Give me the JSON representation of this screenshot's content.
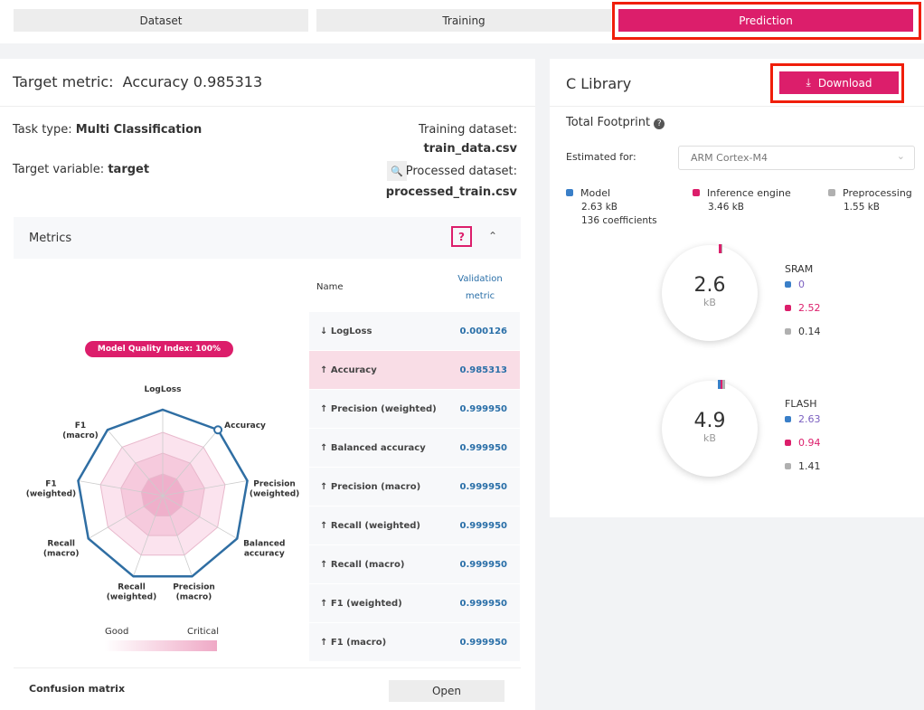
{
  "tabs": [
    {
      "label": "Dataset"
    },
    {
      "label": "Training"
    },
    {
      "label": "Prediction",
      "active": true
    }
  ],
  "left": {
    "target_label": "Target metric:",
    "target_value": "Accuracy 0.985313",
    "task_type_label": "Task type:",
    "task_type": "Multi Classification",
    "target_var_label": "Target variable:",
    "target_var": "target",
    "training_label": "Training dataset:",
    "training_file": "train_data.csv",
    "processed_label": "Processed dataset:",
    "processed_file": "processed_train.csv",
    "metrics_title": "Metrics",
    "help": "?",
    "mqi": "Model Quality Index: 100%",
    "radar_axes": [
      "LogLoss",
      "Accuracy",
      "Precision (weighted)",
      "Balanced accuracy",
      "Precision (macro)",
      "Recall (weighted)",
      "Recall (macro)",
      "F1 (weighted)",
      "F1 (macro)"
    ],
    "radar_values": [
      1,
      1,
      1,
      1,
      1,
      1,
      1,
      1,
      1
    ],
    "legend_good": "Good",
    "legend_critical": "Critical",
    "table_head": {
      "name": "Name",
      "metric": "Validation metric"
    },
    "rows": [
      {
        "arrow": "↓",
        "name": "LogLoss",
        "value": "0.000126"
      },
      {
        "arrow": "↑",
        "name": "Accuracy",
        "value": "0.985313",
        "highlight": true
      },
      {
        "arrow": "↑",
        "name": "Precision (weighted)",
        "value": "0.999950"
      },
      {
        "arrow": "↑",
        "name": "Balanced accuracy",
        "value": "0.999950"
      },
      {
        "arrow": "↑",
        "name": "Precision (macro)",
        "value": "0.999950"
      },
      {
        "arrow": "↑",
        "name": "Recall (weighted)",
        "value": "0.999950"
      },
      {
        "arrow": "↑",
        "name": "Recall (macro)",
        "value": "0.999950"
      },
      {
        "arrow": "↑",
        "name": "F1 (weighted)",
        "value": "0.999950"
      },
      {
        "arrow": "↑",
        "name": "F1 (macro)",
        "value": "0.999950"
      }
    ],
    "confusion_label": "Confusion matrix",
    "open_label": "Open"
  },
  "right": {
    "title": "C Library",
    "download": "Download",
    "footprint": "Total Footprint",
    "estimated_label": "Estimated for:",
    "target": "ARM Cortex-M4",
    "legend": [
      {
        "name": "Model",
        "value": "2.63 kB",
        "extra": "136 coefficients",
        "color": "#3a7fc8"
      },
      {
        "name": "Inference engine",
        "value": "3.46 kB",
        "color": "#dc1e6b"
      },
      {
        "name": "Preprocessing",
        "value": "1.55 kB",
        "color": "#b0b0b0"
      }
    ],
    "sram": {
      "label": "SRAM",
      "total": "2.6",
      "unit": "kB",
      "values": [
        "0",
        "2.52",
        "0.14"
      ]
    },
    "flash": {
      "label": "FLASH",
      "total": "4.9",
      "unit": "kB",
      "values": [
        "2.63",
        "0.94",
        "1.41"
      ]
    }
  },
  "colors": {
    "accent": "#dc1e6b",
    "blue": "#2a6fa8"
  }
}
